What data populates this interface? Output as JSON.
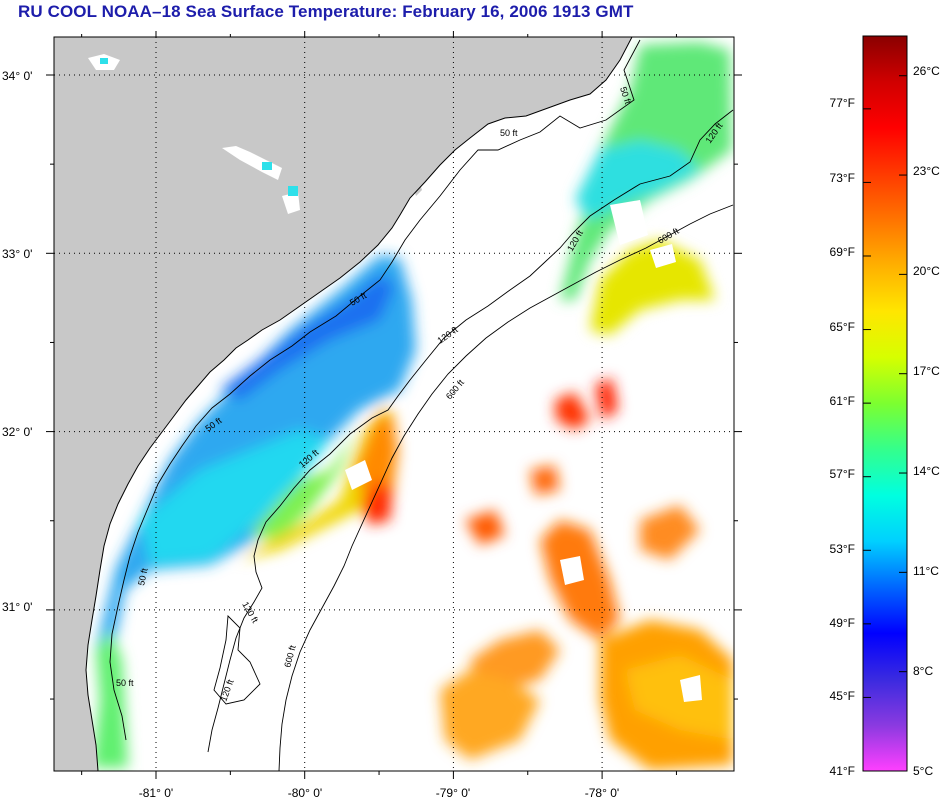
{
  "title": "RU COOL  NOAA–18  Sea Surface Temperature:  February 16, 2006 1913 GMT",
  "colors": {
    "title": "#1d1dab",
    "land": "#c8c8c8",
    "cloud": "#ffffff"
  },
  "map": {
    "lat_labels": [
      "34° 0'",
      "33° 0'",
      "32° 0'",
      "31° 0'"
    ],
    "lon_labels": [
      "-81° 0'",
      "-80° 0'",
      "-79° 0'",
      "-78° 0'"
    ],
    "lat_values": [
      34,
      33,
      32,
      31
    ],
    "lon_values": [
      -81,
      -80,
      -79,
      -78
    ],
    "contour_labels": [
      "50 ft",
      "120 ft",
      "600 ft"
    ]
  },
  "colorbar": {
    "fahrenheit_labels": [
      "77°F",
      "73°F",
      "69°F",
      "65°F",
      "61°F",
      "57°F",
      "53°F",
      "49°F",
      "45°F",
      "41°F"
    ],
    "fahrenheit_values": [
      77,
      73,
      69,
      65,
      61,
      57,
      53,
      49,
      45,
      41
    ],
    "celsius_labels": [
      "26°C",
      "23°C",
      "20°C",
      "17°C",
      "14°C",
      "11°C",
      "8°C",
      "5°C"
    ],
    "celsius_values": [
      26,
      23,
      20,
      17,
      14,
      11,
      8,
      5
    ],
    "min_c": 5,
    "max_c": 27.2,
    "stops": [
      "#ff3fff",
      "#8a3ae0",
      "#3a2ae0",
      "#0000ff",
      "#0066ff",
      "#00d0ff",
      "#00ffe0",
      "#34ff8c",
      "#7cff30",
      "#d6ff00",
      "#ffe600",
      "#ffb000",
      "#ff7400",
      "#ff3a00",
      "#ff0000",
      "#d00000",
      "#8a0000"
    ]
  }
}
